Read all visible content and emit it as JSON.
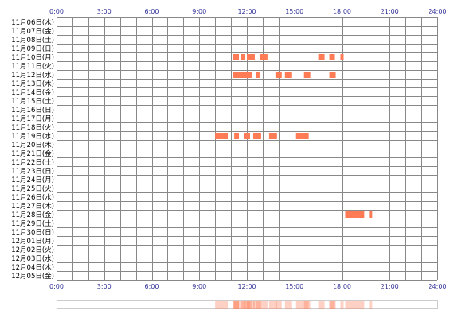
{
  "chart_data": {
    "type": "heatmap",
    "title": "",
    "xlabel": "",
    "ylabel": "",
    "xlim": [
      0,
      24
    ],
    "x_ticks": [
      "0:00",
      "3:00",
      "6:00",
      "9:00",
      "12:00",
      "15:00",
      "18:00",
      "21:00",
      "24:00"
    ],
    "grid": true,
    "bar_color": "#ff7b55",
    "grid_color": "#888888",
    "tick_color": "#333399",
    "rows": [
      "11月06日(木)",
      "11月07日(金)",
      "11月08日(土)",
      "11月09日(日)",
      "11月10日(月)",
      "11月11日(火)",
      "11月12日(水)",
      "11月13日(木)",
      "11月14日(金)",
      "11月15日(土)",
      "11月16日(日)",
      "11月17日(月)",
      "11月18日(火)",
      "11月19日(水)",
      "11月20日(木)",
      "11月21日(金)",
      "11月22日(土)",
      "11月23日(日)",
      "11月24日(月)",
      "11月25日(火)",
      "11月26日(水)",
      "11月27日(木)",
      "11月28日(金)",
      "11月29日(土)",
      "11月30日(日)",
      "12月01日(月)",
      "12月02日(火)",
      "12月03日(水)",
      "12月04日(木)",
      "12月05日(金)"
    ],
    "activity": [
      {
        "row": 4,
        "start": 11.1,
        "end": 11.5
      },
      {
        "row": 4,
        "start": 11.6,
        "end": 11.9
      },
      {
        "row": 4,
        "start": 12.0,
        "end": 12.5
      },
      {
        "row": 4,
        "start": 12.8,
        "end": 13.3
      },
      {
        "row": 4,
        "start": 16.5,
        "end": 16.9
      },
      {
        "row": 4,
        "start": 17.2,
        "end": 17.5
      },
      {
        "row": 4,
        "start": 17.9,
        "end": 18.1
      },
      {
        "row": 6,
        "start": 11.1,
        "end": 12.3
      },
      {
        "row": 6,
        "start": 12.6,
        "end": 12.8
      },
      {
        "row": 6,
        "start": 13.8,
        "end": 14.2
      },
      {
        "row": 6,
        "start": 14.4,
        "end": 14.8
      },
      {
        "row": 6,
        "start": 15.6,
        "end": 16.0
      },
      {
        "row": 6,
        "start": 17.2,
        "end": 17.6
      },
      {
        "row": 13,
        "start": 10.0,
        "end": 10.8
      },
      {
        "row": 13,
        "start": 11.2,
        "end": 11.5
      },
      {
        "row": 13,
        "start": 11.8,
        "end": 12.2
      },
      {
        "row": 13,
        "start": 12.4,
        "end": 12.9
      },
      {
        "row": 13,
        "start": 13.4,
        "end": 13.9
      },
      {
        "row": 13,
        "start": 15.1,
        "end": 15.9
      },
      {
        "row": 22,
        "start": 18.2,
        "end": 19.4
      },
      {
        "row": 22,
        "start": 19.7,
        "end": 19.9
      }
    ]
  }
}
